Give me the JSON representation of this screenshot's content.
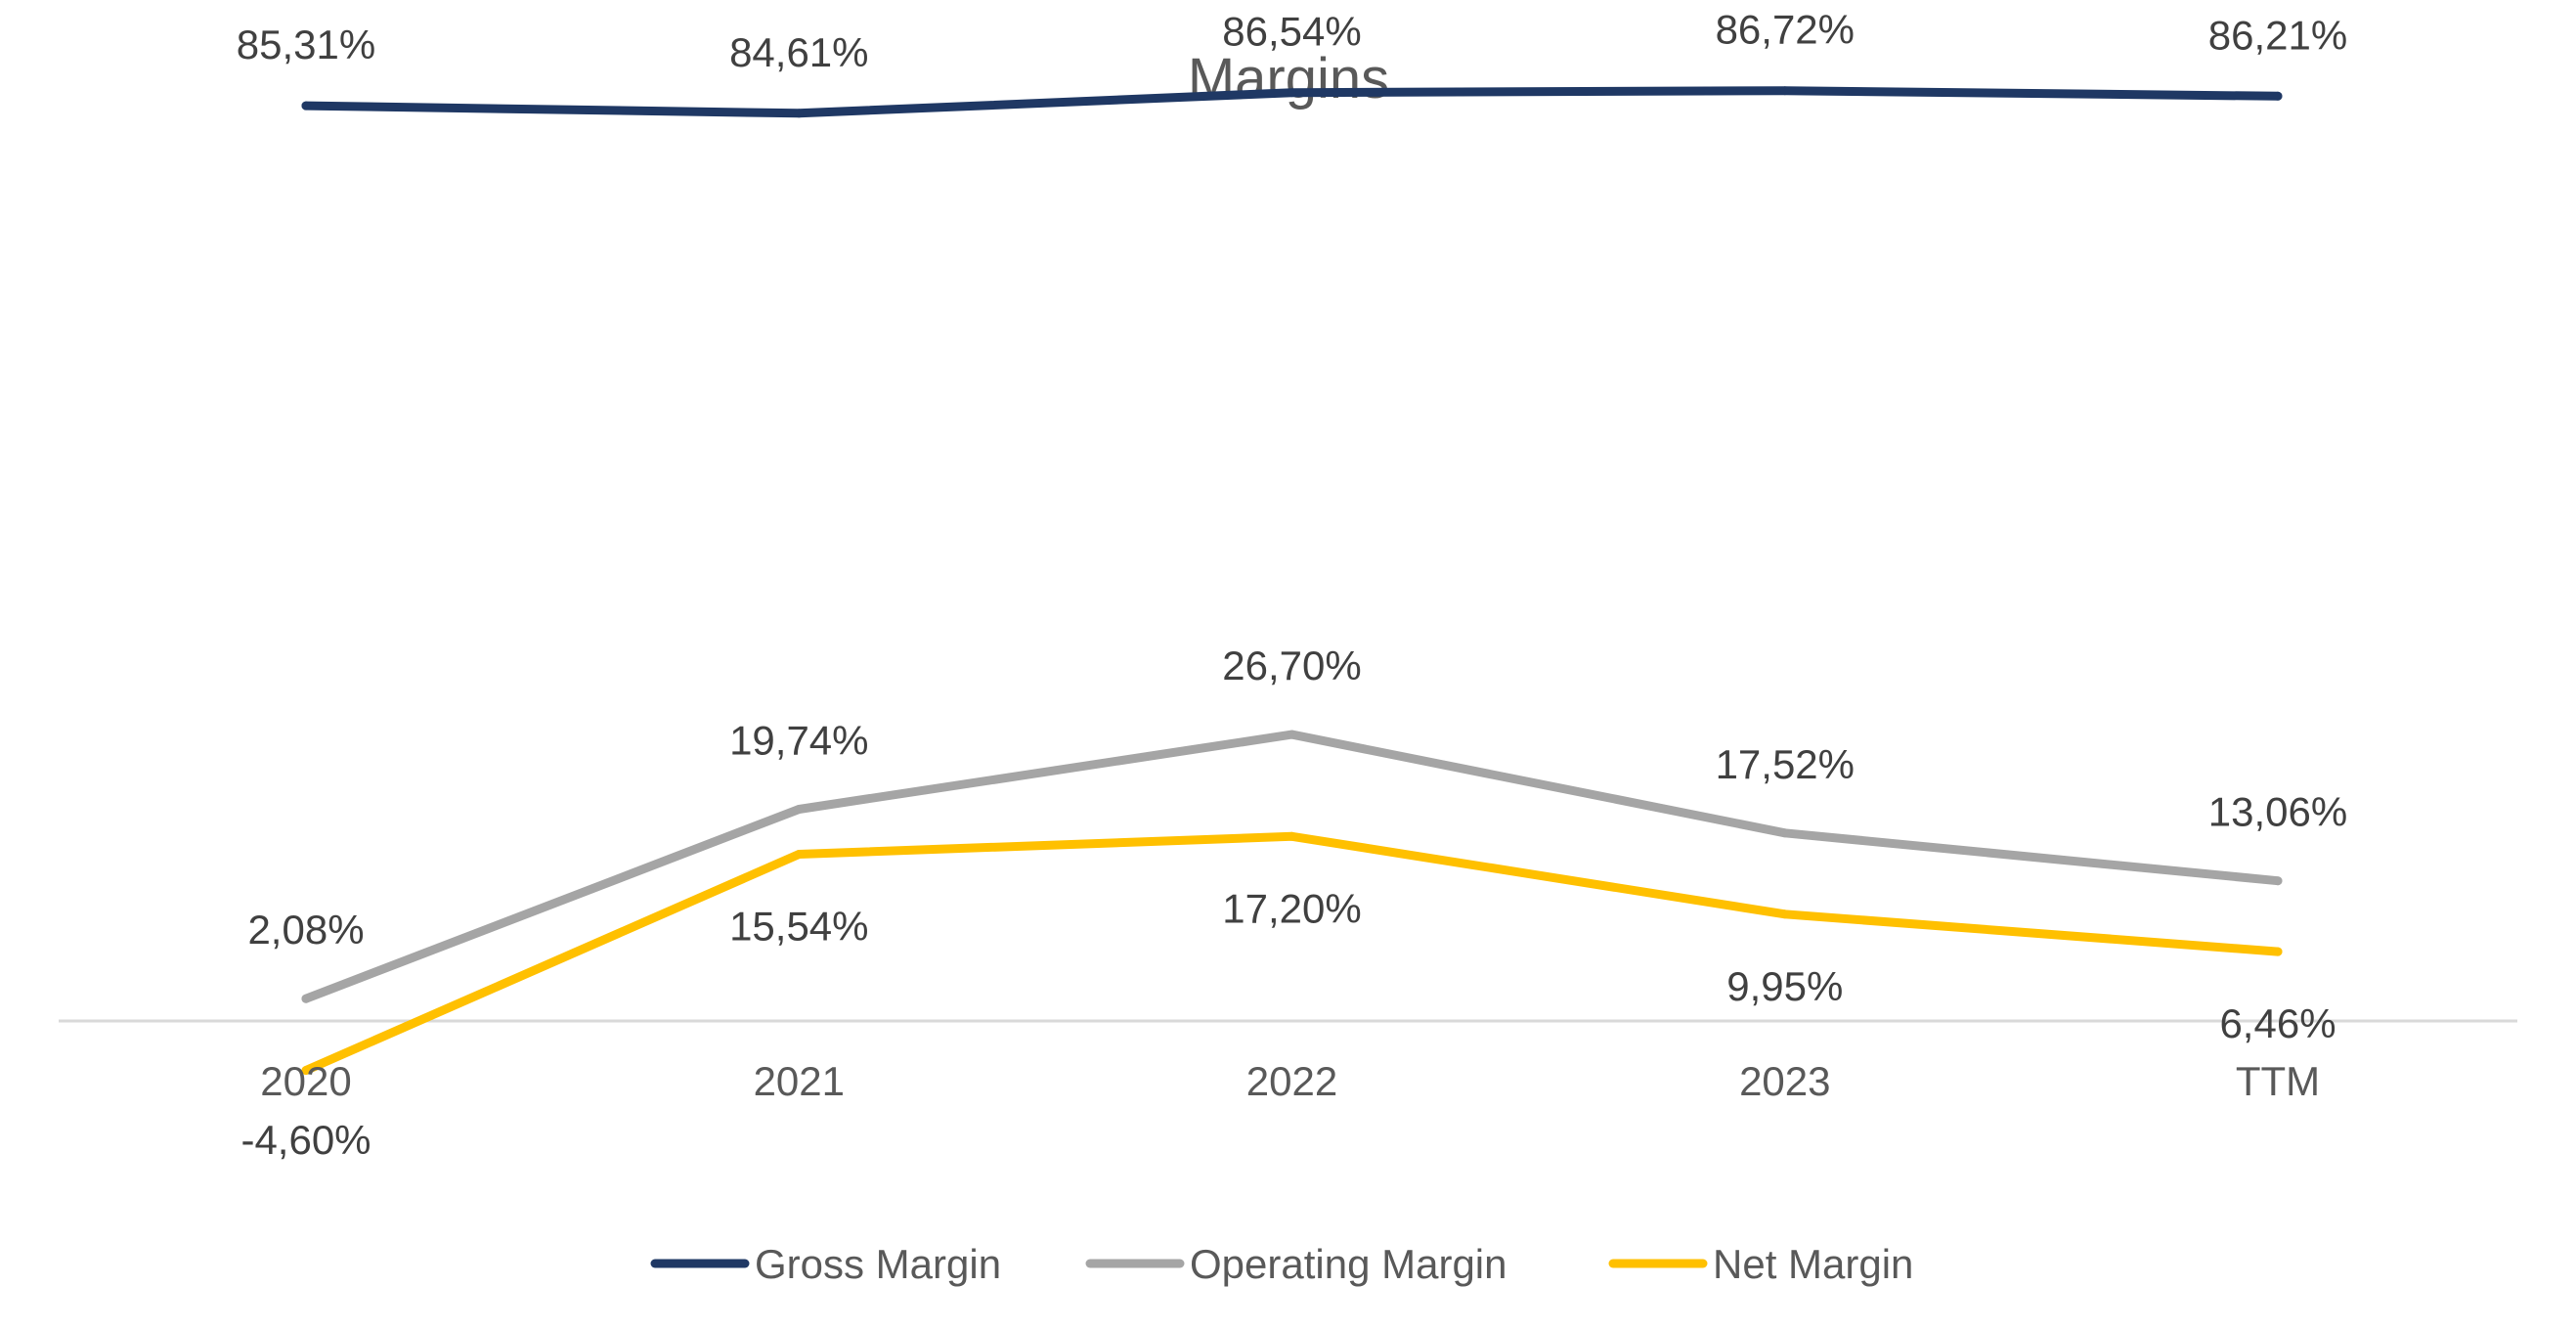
{
  "chart_data": {
    "type": "line",
    "title": "Margins",
    "xlabel": "",
    "ylabel": "",
    "categories": [
      "2020",
      "2021",
      "2022",
      "2023",
      "TTM"
    ],
    "ylim": [
      -10,
      100
    ],
    "y_axis_visible": false,
    "grid": false,
    "legend_position": "bottom",
    "series": [
      {
        "name": "Gross Margin",
        "color": "#1F3864",
        "values": [
          85.31,
          84.61,
          86.54,
          86.72,
          86.21
        ],
        "labels": [
          "85,31%",
          "84,61%",
          "86,54%",
          "86,72%",
          "86,21%"
        ]
      },
      {
        "name": "Operating Margin",
        "color": "#A5A5A5",
        "values": [
          2.08,
          19.74,
          26.7,
          17.52,
          13.06
        ],
        "labels": [
          "2,08%",
          "19,74%",
          "26,70%",
          "17,52%",
          "13,06%"
        ]
      },
      {
        "name": "Net Margin",
        "color": "#FFC000",
        "values": [
          -4.6,
          15.54,
          17.2,
          9.95,
          6.46
        ],
        "labels": [
          "-4,60%",
          "15,54%",
          "17,20%",
          "9,95%",
          "6,46%"
        ]
      }
    ]
  }
}
